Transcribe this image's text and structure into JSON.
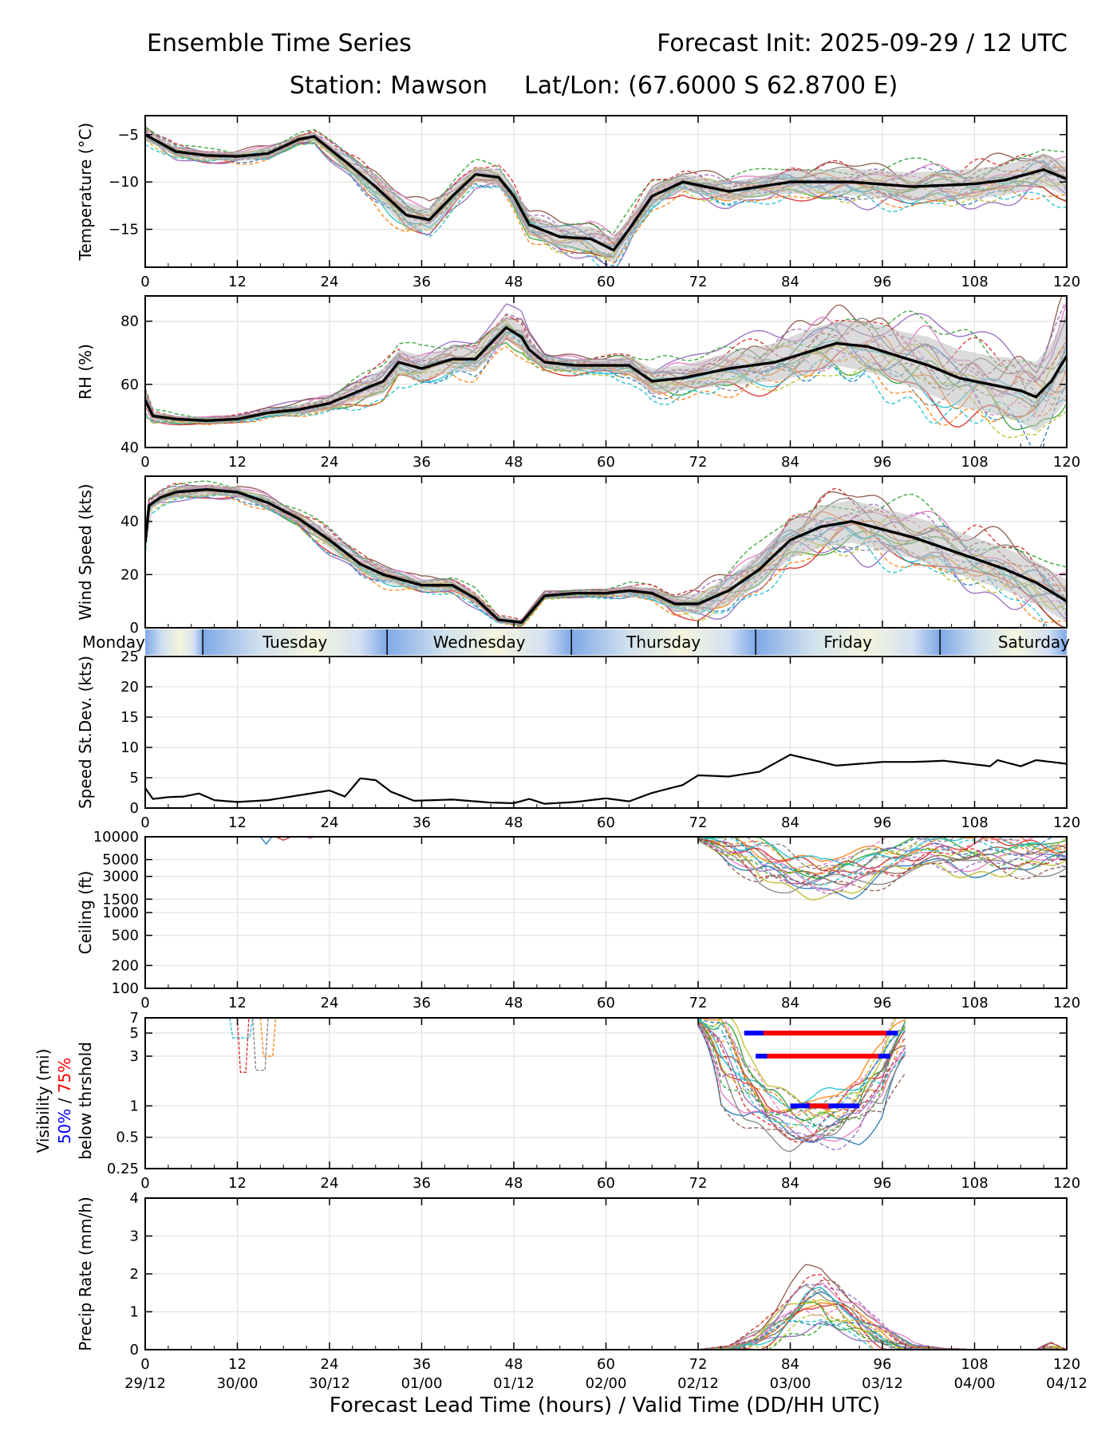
{
  "header": {
    "title": "Ensemble Time Series",
    "init": "Forecast Init: 2025-09-29 / 12 UTC",
    "station": "Station: Mawson",
    "latlon": "Lat/Lon: (67.6000 S 62.8700 E)"
  },
  "xaxis": {
    "label": "Forecast Lead Time (hours) / Valid Time (DD/HH UTC)",
    "ticks": [
      0,
      12,
      24,
      36,
      48,
      60,
      72,
      84,
      96,
      108,
      120
    ],
    "valid_labels": [
      "29/12",
      "30/00",
      "30/12",
      "01/00",
      "01/12",
      "02/00",
      "02/12",
      "03/00",
      "03/12",
      "04/00",
      "04/12"
    ]
  },
  "days": [
    "Monday",
    "Tuesday",
    "Wednesday",
    "Thursday",
    "Friday",
    "Saturday"
  ],
  "visibility_label": {
    "line1": "Visibility (mi)",
    "p50": "50%",
    "sep": " / ",
    "p75": "75%",
    "line3": "below thrshold"
  },
  "colors": {
    "mean": "#000000",
    "p50": "#0000ff",
    "p75": "#ff0000",
    "spread": "#bdbdbd",
    "day_light": "#f5f5dc",
    "day_dark": "#7fa8e6"
  },
  "chart_data": [
    {
      "id": "temp",
      "type": "line",
      "ylabel": "Temperature (°C)",
      "ylim": [
        -19,
        -3
      ],
      "yticks": [
        -5,
        -10,
        -15
      ],
      "ytick_labels": [
        "−5",
        "−10",
        "−15"
      ],
      "x": [
        0,
        4,
        8,
        12,
        16,
        20,
        22,
        26,
        30,
        34,
        37,
        40,
        43,
        46,
        48,
        50,
        54,
        58,
        61,
        63,
        66,
        70,
        76,
        84,
        92,
        100,
        108,
        112,
        117,
        120
      ],
      "mean": [
        -5,
        -6.8,
        -7.2,
        -7.3,
        -7,
        -5.5,
        -5.2,
        -7.8,
        -10.5,
        -13.5,
        -14,
        -11.5,
        -9.2,
        -9.5,
        -11.5,
        -14.5,
        -15.8,
        -16,
        -17.2,
        -15,
        -11.5,
        -10,
        -11,
        -10,
        -10,
        -10.5,
        -10.2,
        -9.8,
        -8.7,
        -9.7
      ],
      "spread": [
        0.6,
        0.5,
        0.5,
        0.5,
        0.5,
        0.4,
        0.4,
        0.9,
        1.3,
        1.4,
        1.2,
        1,
        0.8,
        0.8,
        1,
        1.1,
        1.2,
        1.3,
        1.3,
        1.3,
        1.1,
        0.9,
        1,
        1.2,
        1.4,
        1.5,
        1.6,
        1.6,
        1.7,
        1.8
      ]
    },
    {
      "id": "rh",
      "type": "line",
      "ylabel": "RH (%)",
      "ylim": [
        40,
        88
      ],
      "yticks": [
        40,
        60,
        80
      ],
      "ytick_labels": [
        "40",
        "60",
        "80"
      ],
      "x": [
        0,
        1,
        4,
        8,
        12,
        16,
        20,
        24,
        28,
        31,
        33,
        36,
        40,
        43,
        45,
        47,
        49,
        50,
        52,
        56,
        60,
        63,
        66,
        70,
        76,
        82,
        86,
        90,
        94,
        98,
        102,
        106,
        110,
        114,
        116,
        118,
        120
      ],
      "mean": [
        55,
        50,
        49,
        48.5,
        49,
        51,
        52,
        54,
        58,
        61,
        67,
        65,
        68,
        68,
        73,
        78,
        75,
        71,
        67,
        66,
        66,
        66,
        61,
        62,
        65,
        67,
        70,
        73,
        72,
        69,
        66,
        62,
        60,
        58,
        56,
        61,
        69
      ],
      "spread": [
        3,
        1.5,
        1,
        1,
        1,
        1,
        1.5,
        2,
        3,
        4,
        4,
        4,
        4,
        4,
        4,
        4,
        4,
        3,
        2,
        2,
        2,
        3,
        4,
        4,
        5,
        6,
        7,
        7,
        8,
        8,
        9,
        9,
        9,
        10,
        11,
        12,
        14
      ]
    },
    {
      "id": "wind",
      "type": "line",
      "ylabel": "Wind Speed (kts)",
      "ylim": [
        0,
        57
      ],
      "yticks": [
        0,
        20,
        40
      ],
      "ytick_labels": [
        "0",
        "20",
        "40"
      ],
      "x": [
        0,
        0.5,
        2,
        4,
        8,
        12,
        16,
        20,
        24,
        28,
        31,
        36,
        40,
        43,
        46,
        49,
        52,
        56,
        60,
        63,
        66,
        69,
        72,
        76,
        80,
        84,
        88,
        92,
        96,
        100,
        104,
        108,
        112,
        116,
        120
      ],
      "mean": [
        32,
        46,
        49,
        51,
        52,
        51,
        47,
        41,
        33,
        24,
        20,
        16,
        16,
        11,
        3,
        2,
        12,
        13,
        13,
        14,
        13,
        9,
        9,
        14,
        22,
        33,
        38,
        40,
        37,
        34,
        30,
        26,
        22,
        17,
        10
      ],
      "spread": [
        3,
        2,
        2,
        2,
        2,
        2,
        2,
        2,
        3,
        3,
        3,
        2,
        2,
        2,
        1,
        1,
        1,
        1,
        1,
        2,
        2,
        3,
        4,
        5,
        6,
        7,
        8,
        8,
        8,
        8,
        8,
        8,
        8,
        8,
        8
      ]
    },
    {
      "id": "sd",
      "type": "line",
      "ylabel": "Speed St.Dev. (kts)",
      "ylim": [
        0,
        25
      ],
      "yticks": [
        0,
        5,
        10,
        15,
        20,
        25
      ],
      "ytick_labels": [
        "0",
        "5",
        "10",
        "15",
        "20",
        "25"
      ],
      "x": [
        0,
        1,
        3,
        5,
        7,
        9,
        12,
        16,
        20,
        24,
        26,
        28,
        30,
        32,
        35,
        40,
        45,
        48,
        50,
        52,
        56,
        60,
        63,
        66,
        70,
        72,
        76,
        80,
        82,
        84,
        88,
        90,
        96,
        100,
        104,
        108,
        110,
        111,
        114,
        116,
        120
      ],
      "mean": [
        3.3,
        1.5,
        1.8,
        1.9,
        2.4,
        1.3,
        1.0,
        1.3,
        2.1,
        2.9,
        1.9,
        4.9,
        4.6,
        2.7,
        1.2,
        1.4,
        0.9,
        0.8,
        1.5,
        0.7,
        1.0,
        1.6,
        1.1,
        2.5,
        3.8,
        5.4,
        5.2,
        6.0,
        7.4,
        8.8,
        7.6,
        7.0,
        7.6,
        7.6,
        7.8,
        7.2,
        6.9,
        7.9,
        6.9,
        7.9,
        7.3
      ]
    },
    {
      "id": "ceiling",
      "type": "line",
      "scale": "log",
      "ylabel": "Ceiling (ft)",
      "ylim": [
        100,
        10000
      ],
      "yticks": [
        100,
        200,
        500,
        1000,
        1500,
        3000,
        5000,
        10000
      ],
      "ytick_labels": [
        "100",
        "200",
        "500",
        "1000",
        "1500",
        "3000",
        "5000",
        "10000"
      ],
      "x": [
        72,
        76,
        80,
        84,
        88,
        92,
        96,
        100,
        104,
        110,
        116,
        120
      ],
      "mean": [
        9500,
        7000,
        4500,
        3200,
        2800,
        3200,
        4300,
        5500,
        6000,
        5700,
        5400,
        6000
      ],
      "spread": [
        500,
        2500,
        2500,
        1500,
        1000,
        1500,
        2000,
        2500,
        2500,
        2500,
        2500,
        2500
      ]
    },
    {
      "id": "vis",
      "type": "line",
      "scale": "log",
      "ylim": [
        0.25,
        7
      ],
      "yticks": [
        0.25,
        0.5,
        1,
        3,
        5,
        7
      ],
      "ytick_labels": [
        "0.25",
        "0.5",
        "1",
        "3",
        "5",
        "7"
      ],
      "x": [
        72,
        75,
        78,
        81,
        84,
        87,
        90,
        93,
        96,
        99
      ],
      "mean": [
        6.5,
        3.0,
        1.5,
        0.9,
        0.7,
        0.65,
        0.75,
        1.0,
        1.8,
        4.5
      ],
      "spread": [
        0.5,
        2,
        0.8,
        0.4,
        0.3,
        0.3,
        0.35,
        0.5,
        1,
        2
      ],
      "threshold_bars": [
        {
          "threshold": 5,
          "p50": [
            78,
            98
          ],
          "p75": [
            80.5,
            96.5
          ]
        },
        {
          "threshold": 3,
          "p50": [
            79.5,
            97
          ],
          "p75": [
            81,
            95.5
          ]
        },
        {
          "threshold": 1,
          "p50": [
            84,
            93
          ],
          "p75": [
            86.5,
            89
          ]
        }
      ]
    },
    {
      "id": "precip",
      "type": "line",
      "ylabel": "Precip Rate (mm/h)",
      "ylim": [
        0,
        4
      ],
      "yticks": [
        0,
        1,
        2,
        3,
        4
      ],
      "ytick_labels": [
        "0",
        "1",
        "2",
        "3",
        "4"
      ],
      "x": [
        72,
        76,
        80,
        82,
        84,
        86,
        88,
        90,
        92,
        94,
        96,
        98,
        100,
        104,
        108,
        116,
        118,
        120
      ],
      "mean": [
        0,
        0.05,
        0.3,
        0.6,
        1.0,
        1.3,
        1.4,
        1.2,
        0.9,
        0.6,
        0.35,
        0.15,
        0.05,
        0.01,
        0,
        0,
        0.05,
        0
      ],
      "spread": [
        0,
        0.05,
        0.2,
        0.3,
        0.4,
        0.5,
        0.5,
        0.5,
        0.4,
        0.3,
        0.3,
        0.2,
        0.1,
        0.02,
        0,
        0,
        0.1,
        0
      ]
    }
  ]
}
